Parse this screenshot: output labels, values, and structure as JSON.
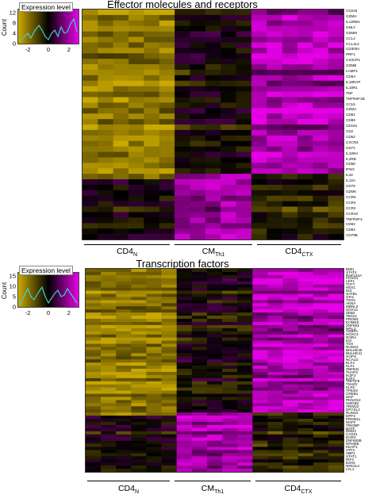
{
  "colors": {
    "low": "#c9a800",
    "mid": "#000000",
    "high": "#e600e6",
    "hist": "#3fd0c8"
  },
  "chart_data": [
    {
      "type": "heatmap",
      "title": "Effector molecules and receptors",
      "groups": [
        {
          "base": "CD4",
          "sub": "N",
          "columns": 6
        },
        {
          "base": "CM",
          "sub": "Th1",
          "columns": 5
        },
        {
          "base": "CD4",
          "sub": "CTX",
          "columns": 6
        }
      ],
      "genes": [
        "CD226",
        "GZMH",
        "IL12RB1",
        "GNLY",
        "GZMM",
        "CCL4",
        "CCL4L2",
        "CD300A",
        "PRF1",
        "CX3CR1",
        "GZMB",
        "LAMP1",
        "CD8A",
        "IL18RAP",
        "IL18R1",
        "TNF",
        "TNFRSF1B",
        "CCL5",
        "GZMA",
        "CD81",
        "CD99",
        "CD151",
        "CD2",
        "CD52",
        "CXCR3",
        "CD74",
        "IL10RA",
        "IL2RB",
        "CD58",
        "IFNG",
        "IL32",
        "IL12A",
        "CD70",
        "GZMK",
        "CCR6",
        "CCR4",
        "CCR2",
        "CCR10",
        "TNFRSF4",
        "CD82",
        "CD84",
        "CD79B"
      ],
      "color_key": {
        "title": "Expression level",
        "x_ticks": [
          "-2",
          "0",
          "2"
        ],
        "y_ticks": [
          "0",
          "4",
          "8",
          "12"
        ],
        "ylabel": "Count"
      }
    },
    {
      "type": "heatmap",
      "title": "Transcription factors",
      "groups": [
        {
          "base": "CD4",
          "sub": "N",
          "columns": 6
        },
        {
          "base": "CM",
          "sub": "Th1",
          "columns": 5
        },
        {
          "base": "CD4",
          "sub": "CTX",
          "columns": 6
        }
      ],
      "genes": [
        "BMI1",
        "STAT4",
        "RNF144A",
        "FOXO1",
        "LEF1",
        "TCF7",
        "HES1",
        "ID3",
        "SATB1",
        "GFI1",
        "TOX2",
        "AKNA",
        "MBNL2",
        "SOX13",
        "ZEB2",
        "TBX21",
        "PRDM1",
        "EOMES",
        "ZNF683",
        "NFIL3",
        "CEBPA",
        "HOXC4",
        "RORA",
        "ID2",
        "TOX",
        "RUNX3",
        "BHLHE40",
        "BHLHE41",
        "HOPX",
        "NCALD",
        "ELF4",
        "KLF1",
        "ZNF831",
        "THAP3",
        "IKZF2",
        "E2F3",
        "TNFSF9",
        "TSHZ2",
        "KLF6",
        "TP53I3",
        "CREB1",
        "MAF",
        "PKNOX2",
        "HMGB2",
        "TRIM22",
        "DPYSL2",
        "RUNX2",
        "DPF3",
        "PRDM11",
        "MAFF",
        "TRIOBP",
        "BATF",
        "MXD4",
        "CASZ1",
        "EGR3",
        "ZNF683B",
        "NFKBIB",
        "KEAP1",
        "ATF3",
        "XBP1",
        "STAT1",
        "IRF4",
        "EZH2",
        "NFE2L3",
        "LYL1"
      ],
      "color_key": {
        "title": "Expression level",
        "x_ticks": [
          "-2",
          "0",
          "2"
        ],
        "y_ticks": [
          "0",
          "5",
          "10",
          "15"
        ],
        "ylabel": "Count"
      }
    }
  ]
}
